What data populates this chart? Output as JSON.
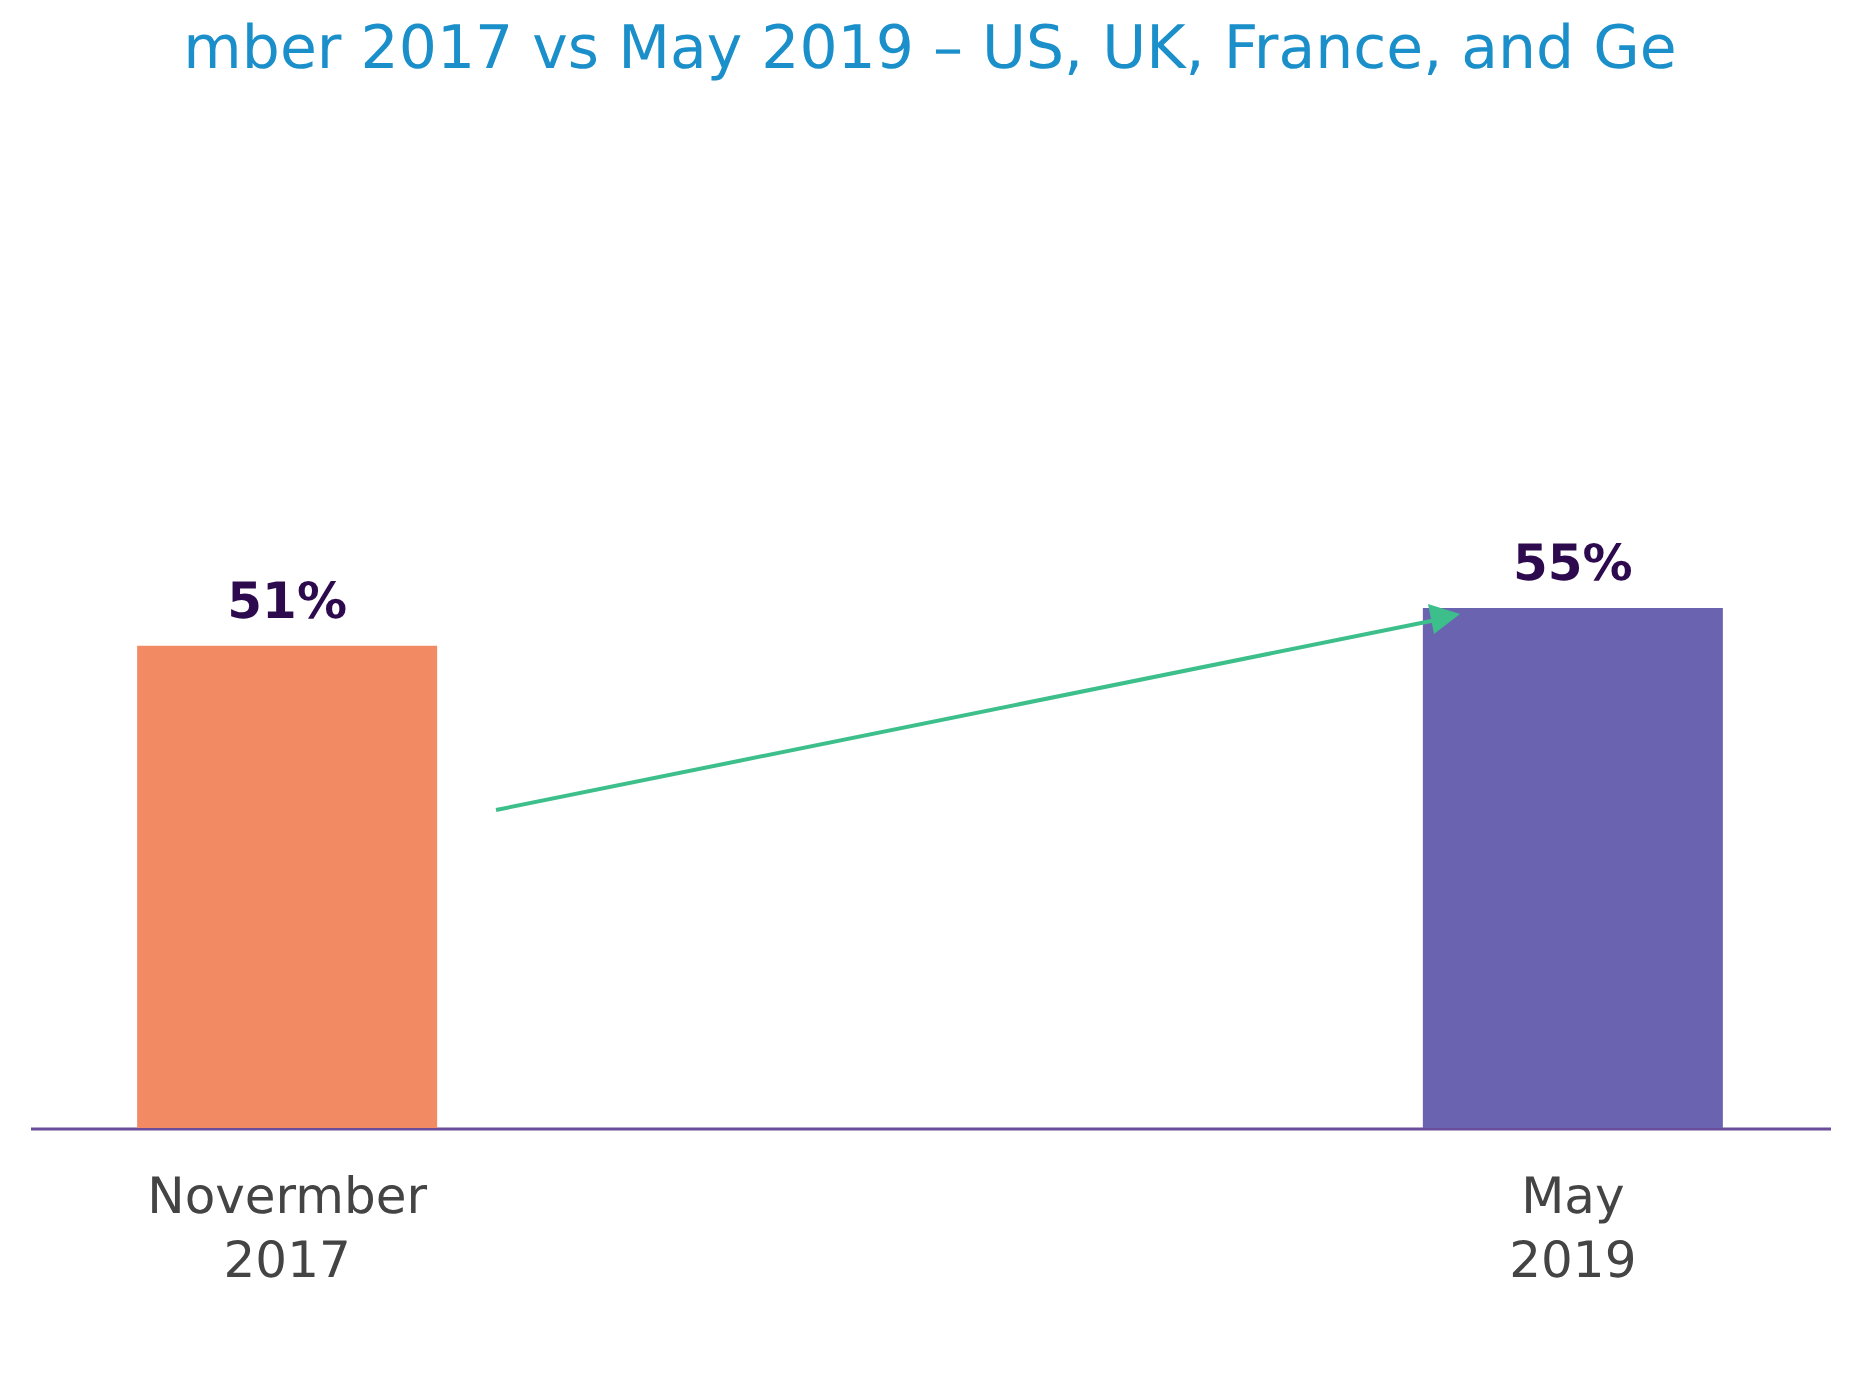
{
  "chart_data": {
    "type": "bar",
    "title": "mber 2017 vs May 2019 – US, UK, France, and Ge",
    "categories": [
      "Novermber 2017",
      "May 2019"
    ],
    "series": [
      {
        "colors": [
          "#f28b63",
          "#6a63b0"
        ],
        "values": [
          51,
          55
        ],
        "value_labels": [
          "51%",
          "55%"
        ]
      }
    ]
  }
}
